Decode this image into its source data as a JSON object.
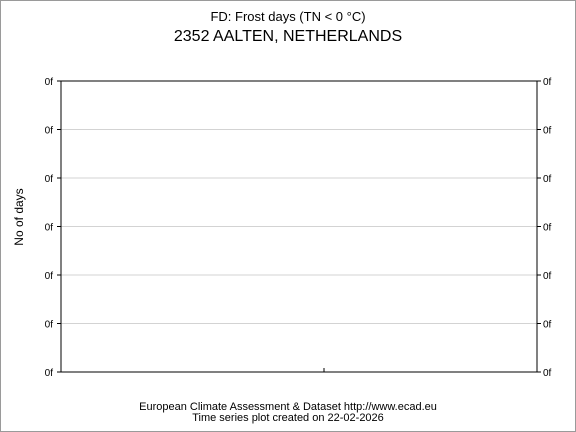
{
  "chart_data": {
    "type": "line",
    "title": "FD: Frost days (TN < 0 °C)",
    "subtitle": "2352 AALTEN, NETHERLANDS",
    "ylabel": "No of days",
    "xlabel": "",
    "grid": true,
    "y_tick_labels": [
      "0f",
      "0f",
      "0f",
      "0f",
      "0f",
      "0f",
      "0f"
    ],
    "series": [],
    "footer": [
      "European Climate Assessment & Dataset  http://www.ecad.eu",
      "Time series plot created on 22-02-2026"
    ]
  }
}
